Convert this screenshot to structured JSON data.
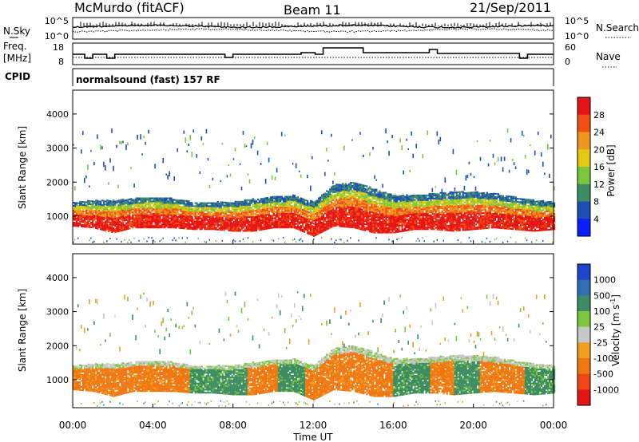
{
  "header": {
    "radar": "McMurdo (fitACF)",
    "beam": "Beam 11",
    "date": "21/Sep/2011"
  },
  "noise_panel": {
    "left_label": "N.Sky",
    "right_label": "N.Search",
    "tick_top": "10^5",
    "tick_bottom": "10^0"
  },
  "freq_panel": {
    "left_label_line1": "Freq.",
    "left_label_line2": "[MHz]",
    "left_ticks": [
      "18",
      "8"
    ],
    "right_label": "Nave",
    "right_ticks": [
      "60",
      "0"
    ]
  },
  "cpid": {
    "label": "CPID",
    "text": "normalsound (fast) 157 RF"
  },
  "chart_data": [
    {
      "type": "heatmap",
      "title": "",
      "xlabel": "Time UT",
      "ylabel": "Slant Range [km]",
      "x_ticks": [
        "00:00",
        "04:00",
        "08:00",
        "12:00",
        "16:00",
        "20:00",
        "00:00"
      ],
      "x_hours": [
        0,
        4,
        8,
        12,
        16,
        20,
        24
      ],
      "y_ticks": [
        1000,
        2000,
        3000,
        4000
      ],
      "ylim": [
        180,
        4700
      ],
      "xlim": [
        0,
        24
      ],
      "colorbar_label": "Power [dB]",
      "colorbar_ticks": [
        "4",
        "8",
        "12",
        "16",
        "20",
        "24",
        "28"
      ],
      "colorbar_colors": [
        "#0a1eff",
        "#1e50b4",
        "#3c8c64",
        "#7cc83c",
        "#e6c814",
        "#f0961e",
        "#f05014",
        "#e61414"
      ],
      "main_band_km": {
        "hours": [
          0,
          1,
          2,
          3,
          4,
          5,
          6,
          7,
          8,
          9,
          10,
          11,
          12,
          13,
          14,
          15,
          16,
          17,
          18,
          19,
          20,
          21,
          22,
          23,
          24
        ],
        "lower": [
          700,
          650,
          500,
          650,
          650,
          650,
          600,
          600,
          550,
          550,
          650,
          650,
          400,
          700,
          650,
          500,
          500,
          600,
          600,
          550,
          600,
          650,
          600,
          550,
          600
        ],
        "upper": [
          1400,
          1450,
          1450,
          1500,
          1550,
          1500,
          1400,
          1400,
          1400,
          1500,
          1550,
          1600,
          1400,
          1900,
          2000,
          1800,
          1600,
          1600,
          1650,
          1700,
          1700,
          1650,
          1550,
          1450,
          1400
        ]
      }
    },
    {
      "type": "heatmap",
      "title": "",
      "xlabel": "Time UT",
      "ylabel": "Slant Range [km]",
      "x_ticks": [
        "00:00",
        "04:00",
        "08:00",
        "12:00",
        "16:00",
        "20:00",
        "00:00"
      ],
      "x_hours": [
        0,
        4,
        8,
        12,
        16,
        20,
        24
      ],
      "y_ticks": [
        1000,
        2000,
        3000,
        4000
      ],
      "ylim": [
        180,
        4700
      ],
      "xlim": [
        0,
        24
      ],
      "colorbar_label": "Velocity [m s^-1]",
      "colorbar_ticks": [
        "1000",
        "500",
        "100",
        "25",
        "-25",
        "-100",
        "-500",
        "-1000"
      ],
      "colorbar_colors": [
        "#1e46c8",
        "#2e6eb4",
        "#3c8c64",
        "#7cc83c",
        "#c8c8c8",
        "#f0a01e",
        "#f07814",
        "#f04614",
        "#e61414"
      ],
      "velocity_segments_hours": [
        {
          "from": 0,
          "to": 5.8,
          "class": "-100"
        },
        {
          "from": 5.8,
          "to": 8.7,
          "class": "100"
        },
        {
          "from": 8.7,
          "to": 10.2,
          "class": "-100"
        },
        {
          "from": 10.2,
          "to": 11.6,
          "class": "100"
        },
        {
          "from": 11.6,
          "to": 16.0,
          "class": "-100"
        },
        {
          "from": 16.0,
          "to": 17.8,
          "class": "100"
        },
        {
          "from": 17.8,
          "to": 19.0,
          "class": "-100"
        },
        {
          "from": 19.0,
          "to": 20.3,
          "class": "100"
        },
        {
          "from": 20.3,
          "to": 22.5,
          "class": "-100"
        },
        {
          "from": 22.5,
          "to": 24,
          "class": "100"
        }
      ]
    }
  ],
  "x_axis": {
    "label": "Time UT",
    "ticks": [
      "00:00",
      "04:00",
      "08:00",
      "12:00",
      "16:00",
      "20:00",
      "00:00"
    ]
  },
  "power_panel": {
    "y_label": "Slant Range [km]",
    "y_ticks": [
      "1000",
      "2000",
      "3000",
      "4000"
    ],
    "colorbar_label": "Power [dB]",
    "colorbar_ticks": [
      "4",
      "8",
      "12",
      "16",
      "20",
      "24",
      "28"
    ]
  },
  "velocity_panel": {
    "y_label": "Slant Range [km]",
    "y_ticks": [
      "1000",
      "2000",
      "3000",
      "4000"
    ],
    "colorbar_label": "Velocity [m s",
    "colorbar_label_sup": "-1",
    "colorbar_label_end": "]",
    "colorbar_ticks": [
      "1000",
      "500",
      "100",
      "25",
      "-25",
      "-100",
      "-500",
      "-1000"
    ]
  }
}
